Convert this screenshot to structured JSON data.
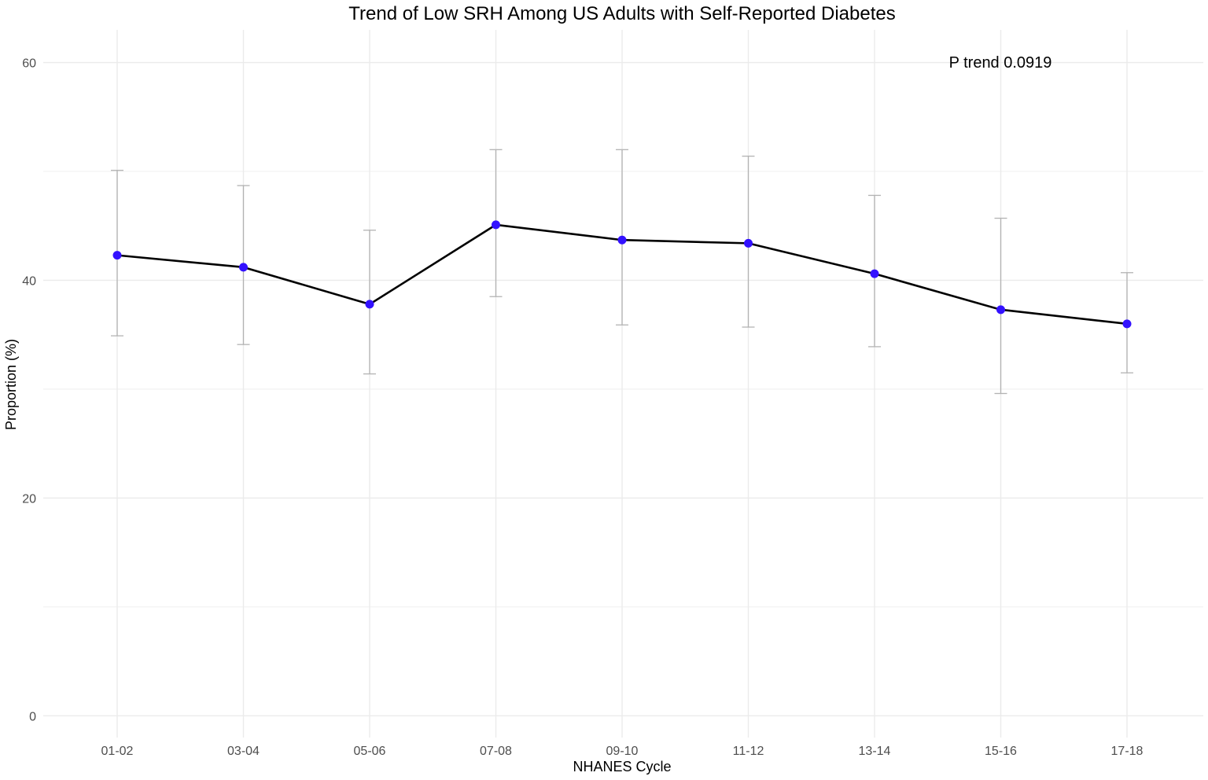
{
  "chart_data": {
    "type": "line",
    "title": "Trend of Low SRH Among US Adults with Self-Reported Diabetes",
    "xlabel": "NHANES Cycle",
    "ylabel": "Proportion (%)",
    "categories": [
      "01-02",
      "03-04",
      "05-06",
      "07-08",
      "09-10",
      "11-12",
      "13-14",
      "15-16",
      "17-18"
    ],
    "series": [
      {
        "values": [
          42.3,
          41.2,
          37.8,
          45.1,
          43.7,
          43.4,
          40.6,
          37.3,
          36.0
        ],
        "lower": [
          34.9,
          34.1,
          31.4,
          38.5,
          35.9,
          35.7,
          33.9,
          29.6,
          31.5
        ],
        "upper": [
          50.1,
          48.7,
          44.6,
          52.0,
          52.0,
          51.4,
          47.8,
          45.7,
          40.7
        ]
      }
    ],
    "ylim": [
      -2,
      63
    ],
    "yticks": [
      0,
      20,
      40,
      60
    ],
    "grid": true,
    "annotation": "P trend 0.0919",
    "colors": {
      "point": "#3311ff",
      "line": "#000000",
      "errorbar": "#b3b3b3",
      "grid": "#ebebeb"
    }
  }
}
